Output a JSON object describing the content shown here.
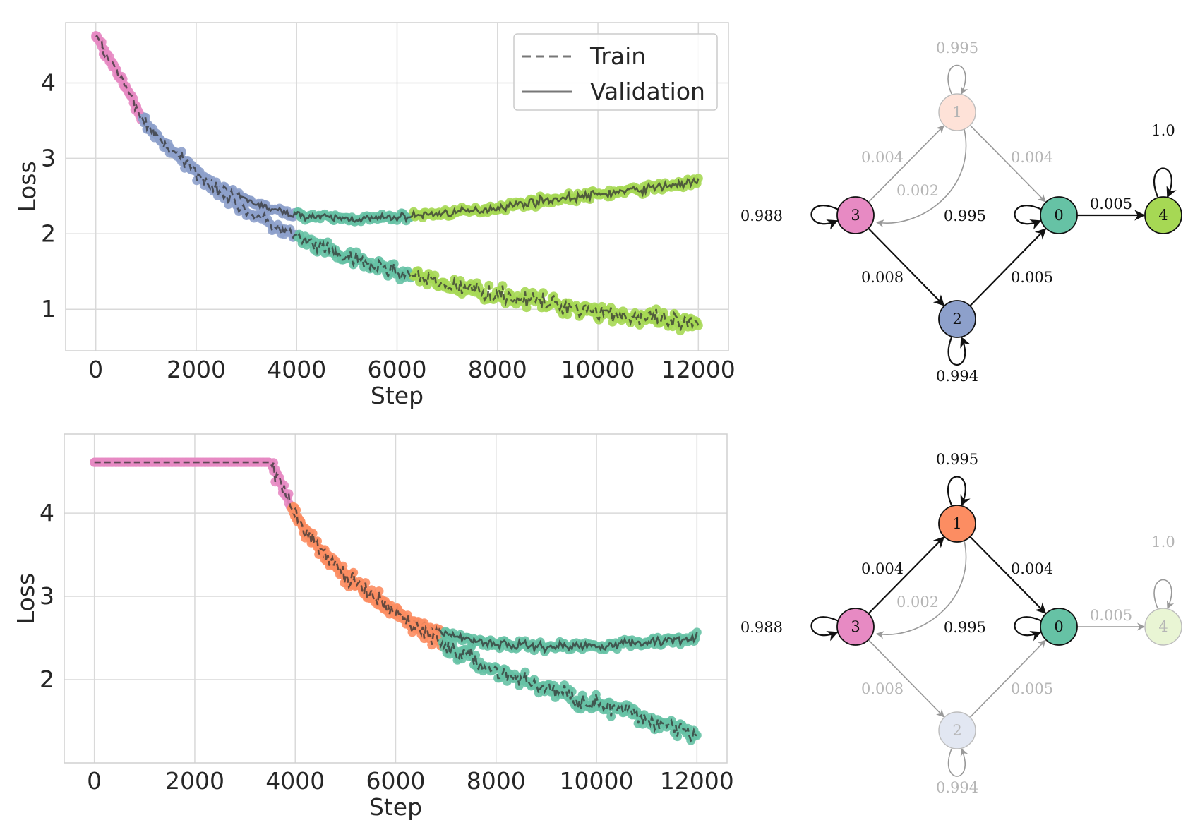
{
  "colors": {
    "c0": "#66c2a5",
    "c1": "#fc8d62",
    "c2": "#8da0cb",
    "c3": "#e78ac3",
    "c4": "#a6d854"
  },
  "chart_data": [
    {
      "type": "line",
      "panel": "top",
      "xlabel": "Step",
      "ylabel": "Loss",
      "xlim": [
        -600,
        12600
      ],
      "ylim": [
        0.45,
        4.8
      ],
      "xticks": [
        "0",
        "2000",
        "4000",
        "6000",
        "8000",
        "10000",
        "12000"
      ],
      "yticks": [
        "1",
        "2",
        "3",
        "4"
      ],
      "legend": {
        "position": "top-right",
        "entries": [
          "Train",
          "Validation"
        ]
      },
      "series": [
        {
          "name": "Validation",
          "style": "solid",
          "x": [
            0,
            500,
            1000,
            1500,
            2000,
            2500,
            3000,
            3500,
            4000,
            4500,
            5000,
            5500,
            6000,
            6500,
            7000,
            7500,
            8000,
            8500,
            9000,
            9500,
            10000,
            10500,
            11000,
            11500,
            12000
          ],
          "values": [
            4.62,
            4.05,
            3.45,
            3.1,
            2.82,
            2.6,
            2.45,
            2.32,
            2.25,
            2.22,
            2.2,
            2.2,
            2.22,
            2.25,
            2.28,
            2.3,
            2.35,
            2.4,
            2.45,
            2.48,
            2.52,
            2.56,
            2.6,
            2.65,
            2.68
          ]
        },
        {
          "name": "Train",
          "style": "dashed",
          "x": [
            0,
            500,
            1000,
            1500,
            2000,
            2500,
            3000,
            3500,
            4000,
            4500,
            5000,
            5500,
            6000,
            6500,
            7000,
            7500,
            8000,
            8500,
            9000,
            9500,
            10000,
            10500,
            11000,
            11500,
            12000
          ],
          "values": [
            4.62,
            4.05,
            3.45,
            3.1,
            2.82,
            2.55,
            2.3,
            2.12,
            1.95,
            1.8,
            1.68,
            1.58,
            1.5,
            1.4,
            1.32,
            1.26,
            1.2,
            1.14,
            1.08,
            1.03,
            0.98,
            0.92,
            0.87,
            0.82,
            0.78
          ]
        }
      ],
      "segments": [
        {
          "state": "3",
          "from": 0,
          "to": 900
        },
        {
          "state": "2",
          "from": 900,
          "to": 4000
        },
        {
          "state": "0",
          "from": 4000,
          "to": 6300
        },
        {
          "state": "4",
          "from": 6300,
          "to": 12000
        }
      ]
    },
    {
      "type": "line",
      "panel": "bottom",
      "xlabel": "Step",
      "ylabel": "Loss",
      "xlim": [
        -600,
        12600
      ],
      "ylim": [
        1.0,
        4.95
      ],
      "xticks": [
        "0",
        "2000",
        "4000",
        "6000",
        "8000",
        "10000",
        "12000"
      ],
      "yticks": [
        "2",
        "3",
        "4"
      ],
      "series": [
        {
          "name": "Validation",
          "style": "solid",
          "x": [
            0,
            500,
            1000,
            1500,
            2000,
            2500,
            3000,
            3500,
            4000,
            4500,
            5000,
            5500,
            6000,
            6500,
            7000,
            7500,
            8000,
            8500,
            9000,
            9500,
            10000,
            10500,
            11000,
            11500,
            12000
          ],
          "values": [
            4.61,
            4.61,
            4.61,
            4.61,
            4.61,
            4.61,
            4.61,
            4.61,
            3.98,
            3.55,
            3.25,
            3.0,
            2.8,
            2.65,
            2.55,
            2.48,
            2.43,
            2.41,
            2.4,
            2.4,
            2.41,
            2.43,
            2.45,
            2.48,
            2.52
          ]
        },
        {
          "name": "Train",
          "style": "dashed",
          "x": [
            0,
            500,
            1000,
            1500,
            2000,
            2500,
            3000,
            3500,
            4000,
            4500,
            5000,
            5500,
            6000,
            6500,
            7000,
            7500,
            8000,
            8500,
            9000,
            9500,
            10000,
            10500,
            11000,
            11500,
            12000
          ],
          "values": [
            4.61,
            4.61,
            4.61,
            4.61,
            4.61,
            4.61,
            4.61,
            4.61,
            3.98,
            3.55,
            3.25,
            3.0,
            2.8,
            2.6,
            2.4,
            2.25,
            2.1,
            2.0,
            1.9,
            1.8,
            1.7,
            1.62,
            1.52,
            1.45,
            1.38
          ]
        }
      ],
      "segments": [
        {
          "state": "3",
          "from": 0,
          "to": 3900
        },
        {
          "state": "1",
          "from": 3900,
          "to": 6900
        },
        {
          "state": "0",
          "from": 6900,
          "to": 12000
        }
      ]
    }
  ],
  "graphs": [
    {
      "panel": "top",
      "nodes": [
        {
          "id": "3",
          "active": true
        },
        {
          "id": "1",
          "active": false
        },
        {
          "id": "0",
          "active": true
        },
        {
          "id": "4",
          "active": true
        },
        {
          "id": "2",
          "active": true
        }
      ],
      "edges": [
        {
          "from": "3",
          "to": "3",
          "label": "0.988",
          "active": true
        },
        {
          "from": "1",
          "to": "1",
          "label": "0.995",
          "active": false
        },
        {
          "from": "0",
          "to": "0",
          "label": "0.995",
          "active": true
        },
        {
          "from": "4",
          "to": "4",
          "label": "1.0",
          "active": true
        },
        {
          "from": "2",
          "to": "2",
          "label": "0.994",
          "active": true
        },
        {
          "from": "3",
          "to": "1",
          "label": "0.004",
          "active": false
        },
        {
          "from": "1",
          "to": "3",
          "label": "0.002",
          "active": false
        },
        {
          "from": "1",
          "to": "0",
          "label": "0.004",
          "active": false
        },
        {
          "from": "0",
          "to": "4",
          "label": "0.005",
          "active": true
        },
        {
          "from": "3",
          "to": "2",
          "label": "0.008",
          "active": true
        },
        {
          "from": "2",
          "to": "0",
          "label": "0.005",
          "active": true
        }
      ]
    },
    {
      "panel": "bottom",
      "nodes": [
        {
          "id": "3",
          "active": true
        },
        {
          "id": "1",
          "active": true
        },
        {
          "id": "0",
          "active": true
        },
        {
          "id": "4",
          "active": false
        },
        {
          "id": "2",
          "active": false
        }
      ],
      "edges": [
        {
          "from": "3",
          "to": "3",
          "label": "0.988",
          "active": true
        },
        {
          "from": "1",
          "to": "1",
          "label": "0.995",
          "active": true
        },
        {
          "from": "0",
          "to": "0",
          "label": "0.995",
          "active": true
        },
        {
          "from": "4",
          "to": "4",
          "label": "1.0",
          "active": false
        },
        {
          "from": "2",
          "to": "2",
          "label": "0.994",
          "active": false
        },
        {
          "from": "3",
          "to": "1",
          "label": "0.004",
          "active": true
        },
        {
          "from": "1",
          "to": "3",
          "label": "0.002",
          "active": false
        },
        {
          "from": "1",
          "to": "0",
          "label": "0.004",
          "active": true
        },
        {
          "from": "0",
          "to": "4",
          "label": "0.005",
          "active": false
        },
        {
          "from": "3",
          "to": "2",
          "label": "0.008",
          "active": false
        },
        {
          "from": "2",
          "to": "0",
          "label": "0.005",
          "active": false
        }
      ]
    }
  ]
}
